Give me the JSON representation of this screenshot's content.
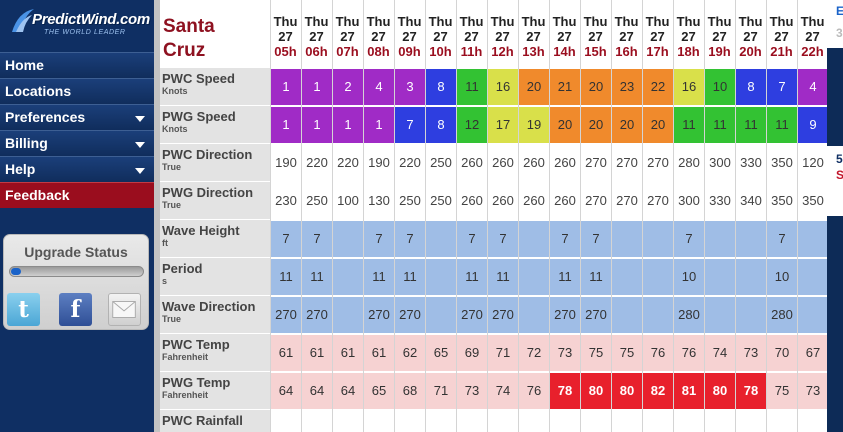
{
  "app": {
    "brand": "PredictWind.com",
    "tagline": "THE WORLD LEADER"
  },
  "nav": [
    {
      "label": "Home",
      "caret": false,
      "active": false
    },
    {
      "label": "Locations",
      "caret": false,
      "active": false
    },
    {
      "label": "Preferences",
      "caret": true,
      "active": false
    },
    {
      "label": "Billing",
      "caret": true,
      "active": false
    },
    {
      "label": "Help",
      "caret": true,
      "active": false
    },
    {
      "label": "Feedback",
      "caret": false,
      "active": true
    }
  ],
  "upgrade": {
    "title": "Upgrade Status",
    "progress": 0.04
  },
  "share": {
    "twitter": "t",
    "facebook": "f"
  },
  "location": {
    "name_line1": "Santa",
    "name_line2": "Cruz"
  },
  "hours": [
    {
      "day": "Thu",
      "date": "27",
      "time": "05h"
    },
    {
      "day": "Thu",
      "date": "27",
      "time": "06h"
    },
    {
      "day": "Thu",
      "date": "27",
      "time": "07h"
    },
    {
      "day": "Thu",
      "date": "27",
      "time": "08h"
    },
    {
      "day": "Thu",
      "date": "27",
      "time": "09h"
    },
    {
      "day": "Thu",
      "date": "27",
      "time": "10h"
    },
    {
      "day": "Thu",
      "date": "27",
      "time": "11h"
    },
    {
      "day": "Thu",
      "date": "27",
      "time": "12h"
    },
    {
      "day": "Thu",
      "date": "27",
      "time": "13h"
    },
    {
      "day": "Thu",
      "date": "27",
      "time": "14h"
    },
    {
      "day": "Thu",
      "date": "27",
      "time": "15h"
    },
    {
      "day": "Thu",
      "date": "27",
      "time": "16h"
    },
    {
      "day": "Thu",
      "date": "27",
      "time": "17h"
    },
    {
      "day": "Thu",
      "date": "27",
      "time": "18h"
    },
    {
      "day": "Thu",
      "date": "27",
      "time": "19h"
    },
    {
      "day": "Thu",
      "date": "27",
      "time": "20h"
    },
    {
      "day": "Thu",
      "date": "27",
      "time": "21h"
    },
    {
      "day": "Thu",
      "date": "27",
      "time": "22h"
    }
  ],
  "rows": [
    {
      "label": "PWC Speed",
      "unit": "Knots",
      "values": [
        "1",
        "1",
        "2",
        "4",
        "3",
        "8",
        "11",
        "16",
        "20",
        "21",
        "20",
        "23",
        "22",
        "16",
        "10",
        "8",
        "7",
        "4"
      ],
      "colors": [
        "#a02bc6",
        "#a02bc6",
        "#a02bc6",
        "#a02bc6",
        "#a02bc6",
        "#2e3ee0",
        "#33c233",
        "#d9e04a",
        "#f08a2c",
        "#f08a2c",
        "#f08a2c",
        "#f08a2c",
        "#f08a2c",
        "#d9e04a",
        "#33c233",
        "#2e3ee0",
        "#2e3ee0",
        "#a02bc6"
      ]
    },
    {
      "label": "PWG Speed",
      "unit": "Knots",
      "values": [
        "1",
        "1",
        "1",
        "1",
        "7",
        "8",
        "12",
        "17",
        "19",
        "20",
        "20",
        "20",
        "20",
        "11",
        "11",
        "11",
        "11",
        "9"
      ],
      "colors": [
        "#a02bc6",
        "#a02bc6",
        "#a02bc6",
        "#a02bc6",
        "#2e3ee0",
        "#2e3ee0",
        "#33c233",
        "#d9e04a",
        "#d9e04a",
        "#f08a2c",
        "#f08a2c",
        "#f08a2c",
        "#f08a2c",
        "#33c233",
        "#33c233",
        "#33c233",
        "#33c233",
        "#2e3ee0"
      ]
    },
    {
      "label": "PWC Direction",
      "unit": "True",
      "values": [
        "190",
        "220",
        "220",
        "190",
        "220",
        "250",
        "260",
        "260",
        "260",
        "260",
        "270",
        "270",
        "270",
        "280",
        "300",
        "330",
        "350",
        "120"
      ],
      "colors": "white"
    },
    {
      "label": "PWG Direction",
      "unit": "True",
      "values": [
        "230",
        "250",
        "100",
        "130",
        "250",
        "250",
        "260",
        "260",
        "260",
        "260",
        "270",
        "270",
        "270",
        "300",
        "330",
        "340",
        "350",
        "350"
      ],
      "colors": "white"
    },
    {
      "label": "Wave Height",
      "unit": "ft",
      "values": [
        "7",
        "7",
        "",
        "7",
        "7",
        "",
        "7",
        "7",
        "",
        "7",
        "7",
        "",
        "",
        "7",
        "",
        "",
        "7",
        ""
      ],
      "colors": "#9fbde6"
    },
    {
      "label": "Period",
      "unit": "s",
      "values": [
        "11",
        "11",
        "",
        "11",
        "11",
        "",
        "11",
        "11",
        "",
        "11",
        "11",
        "",
        "",
        "10",
        "",
        "",
        "10",
        ""
      ],
      "colors": "#9fbde6"
    },
    {
      "label": "Wave Direction",
      "unit": "True",
      "values": [
        "270",
        "270",
        "",
        "270",
        "270",
        "",
        "270",
        "270",
        "",
        "270",
        "270",
        "",
        "",
        "280",
        "",
        "",
        "280",
        ""
      ],
      "colors": "#9fbde6"
    },
    {
      "label": "PWC Temp",
      "unit": "Fahrenheit",
      "values": [
        "61",
        "61",
        "61",
        "61",
        "62",
        "65",
        "69",
        "71",
        "72",
        "73",
        "75",
        "75",
        "76",
        "76",
        "74",
        "73",
        "70",
        "67"
      ],
      "colors": "#f6d2d2"
    },
    {
      "label": "PWG Temp",
      "unit": "Fahrenheit",
      "values": [
        "64",
        "64",
        "64",
        "65",
        "68",
        "71",
        "73",
        "74",
        "76",
        "78",
        "80",
        "80",
        "82",
        "81",
        "80",
        "78",
        "75",
        "73"
      ],
      "colors": [
        "#f6d2d2",
        "#f6d2d2",
        "#f6d2d2",
        "#f6d2d2",
        "#f6d2d2",
        "#f6d2d2",
        "#f6d2d2",
        "#f6d2d2",
        "#f6d2d2",
        "#e8202c",
        "#e8202c",
        "#e8202c",
        "#e8202c",
        "#e8202c",
        "#e8202c",
        "#e8202c",
        "#f6d2d2",
        "#f6d2d2"
      ]
    },
    {
      "label": "PWC Rainfall",
      "unit": "",
      "values": [],
      "colors": "white"
    }
  ],
  "right_strip": {
    "texts": [
      "3",
      "E",
      "5",
      "S"
    ]
  }
}
